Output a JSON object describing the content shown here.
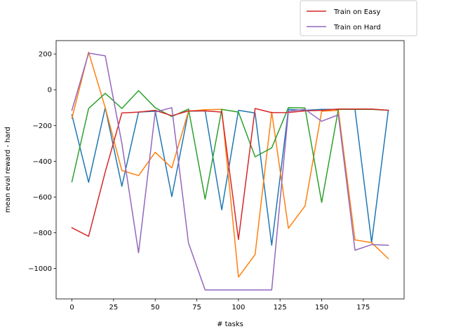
{
  "chart_data": {
    "type": "line",
    "xlabel": "# tasks",
    "ylabel": "mean eval reward - hard",
    "xlim": [
      -9.5,
      199.5
    ],
    "ylim": [
      -1170,
      275
    ],
    "xticks": [
      0,
      25,
      50,
      75,
      100,
      125,
      150,
      175
    ],
    "yticks": [
      200,
      0,
      -200,
      -400,
      -600,
      -800,
      -1000
    ],
    "ytick_labels": [
      "200",
      "0",
      "−200",
      "−400",
      "−600",
      "−800",
      "−1000"
    ],
    "grid": false,
    "legend_position": "top-right (outside plot)",
    "legend": [
      {
        "label": "Train on Easy",
        "color": "#d62728"
      },
      {
        "label": "Train on Hard",
        "color": "#9467bd"
      }
    ],
    "x": [
      0,
      10,
      20,
      30,
      40,
      50,
      60,
      70,
      80,
      90,
      100,
      110,
      120,
      130,
      140,
      150,
      160,
      170,
      180,
      190
    ],
    "series": [
      {
        "color": "#1f77b4",
        "values": [
          -140,
          -518,
          -100,
          -540,
          -125,
          -120,
          -598,
          -120,
          -118,
          -672,
          -115,
          -130,
          -870,
          -110,
          -115,
          -110,
          -110,
          -110,
          -855,
          -115
        ]
      },
      {
        "color": "#ff7f0e",
        "values": [
          -160,
          210,
          -100,
          -452,
          -480,
          -350,
          -437,
          -120,
          -112,
          -110,
          -1048,
          -922,
          -125,
          -775,
          -650,
          -120,
          -115,
          -840,
          -855,
          -945
        ]
      },
      {
        "color": "#2ca02c",
        "values": [
          -515,
          -105,
          -20,
          -105,
          -5,
          -100,
          -150,
          -108,
          -612,
          -110,
          -125,
          -375,
          -325,
          -100,
          -102,
          -630,
          -110,
          -110,
          -110,
          -115
        ]
      },
      {
        "color": "#d62728",
        "values": [
          -772,
          -820,
          -460,
          -130,
          -125,
          -115,
          -145,
          -118,
          -118,
          -125,
          -838,
          -105,
          -128,
          -127,
          -118,
          -115,
          -108,
          -108,
          -108,
          -115
        ]
      },
      {
        "color": "#9467bd",
        "values": [
          -115,
          205,
          190,
          -300,
          -912,
          -125,
          -100,
          -858,
          -1120,
          -1120,
          -1120,
          -1120,
          -1120,
          -120,
          -110,
          -176,
          -140,
          -898,
          -866,
          -870
        ]
      }
    ]
  }
}
